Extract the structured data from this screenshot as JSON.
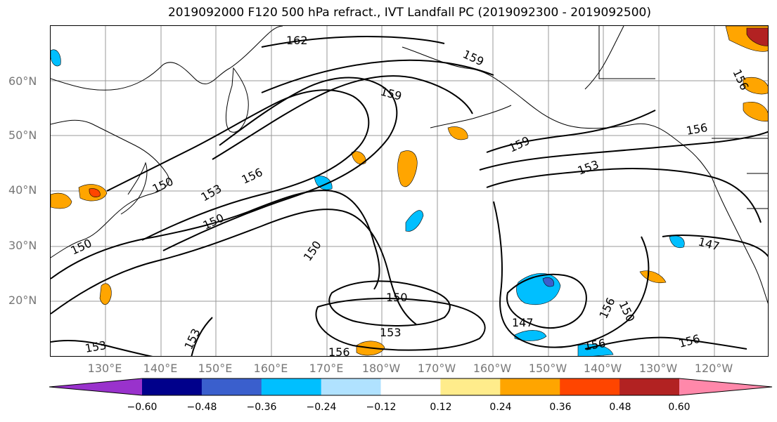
{
  "title": "2019092000 F120 500 hPa refract., IVT Landfall PC (2019092300 - 2019092500)",
  "map": {
    "lat_labels": [
      "60°N",
      "50°N",
      "40°N",
      "30°N",
      "20°N"
    ],
    "lon_labels": [
      "130°E",
      "140°E",
      "150°E",
      "160°E",
      "170°E",
      "180°W",
      "170°W",
      "160°W",
      "150°W",
      "140°W",
      "130°W",
      "120°W"
    ],
    "contour_labels": [
      "162",
      "159",
      "159",
      "156",
      "156",
      "156",
      "156",
      "156",
      "156",
      "153",
      "153",
      "153",
      "153",
      "153",
      "150",
      "150",
      "150",
      "150",
      "150",
      "150",
      "147",
      "147",
      "159",
      "156"
    ]
  },
  "colorbar": {
    "colors": [
      "#9932cc",
      "#00008b",
      "#3a5fcd",
      "#00bfff",
      "#b0e2ff",
      "#ffffff",
      "#ffec8b",
      "#ffa500",
      "#ff4500",
      "#b22222",
      "#ff88aa"
    ],
    "tick_labels": [
      "−0.60",
      "−0.48",
      "−0.36",
      "−0.24",
      "−0.12",
      "0.12",
      "0.24",
      "0.36",
      "0.48",
      "0.60"
    ]
  },
  "theme": {
    "grid_color": "#999999",
    "contour_color": "#000000",
    "tick_label_color": "#777777"
  }
}
